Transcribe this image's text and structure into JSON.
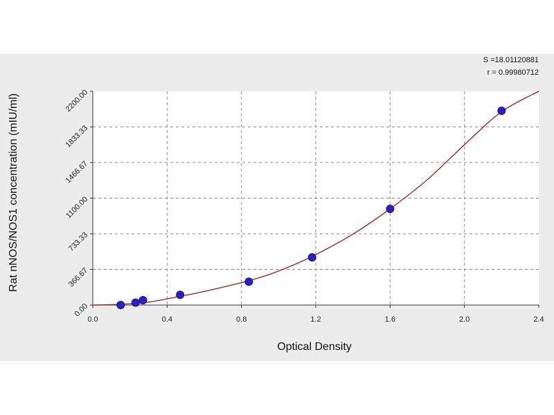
{
  "chart_data": {
    "type": "scatter",
    "xlabel": "Optical Density",
    "ylabel": "Rat nNOS/NOS1 concentration (mIU/ml)",
    "xlim": [
      0,
      2.4
    ],
    "ylim": [
      0,
      2200
    ],
    "x_ticks": [
      {
        "value": 0.0,
        "label": "0.0"
      },
      {
        "value": 0.4,
        "label": "0.4"
      },
      {
        "value": 0.8,
        "label": "0.8"
      },
      {
        "value": 1.2,
        "label": "1.2"
      },
      {
        "value": 1.6,
        "label": "1.6"
      },
      {
        "value": 2.0,
        "label": "2.0"
      },
      {
        "value": 2.4,
        "label": "2.4"
      }
    ],
    "y_ticks": [
      {
        "value": 0,
        "label": "0.00"
      },
      {
        "value": 366.67,
        "label": "366.67"
      },
      {
        "value": 733.33,
        "label": "733.33"
      },
      {
        "value": 1100,
        "label": "1100.00"
      },
      {
        "value": 1466.67,
        "label": "1466.67"
      },
      {
        "value": 1833.33,
        "label": "1833.33"
      },
      {
        "value": 2200,
        "label": "2200.00"
      }
    ],
    "grid": true,
    "points": [
      {
        "x": 0.15,
        "y": 0
      },
      {
        "x": 0.23,
        "y": 25
      },
      {
        "x": 0.27,
        "y": 50
      },
      {
        "x": 0.47,
        "y": 105
      },
      {
        "x": 0.84,
        "y": 240
      },
      {
        "x": 1.18,
        "y": 490
      },
      {
        "x": 1.6,
        "y": 990
      },
      {
        "x": 2.2,
        "y": 2000
      }
    ],
    "fit_curve": [
      {
        "x": 0.0,
        "y": 0
      },
      {
        "x": 0.15,
        "y": 8
      },
      {
        "x": 0.3,
        "y": 30
      },
      {
        "x": 0.47,
        "y": 90
      },
      {
        "x": 0.6,
        "y": 140
      },
      {
        "x": 0.84,
        "y": 250
      },
      {
        "x": 1.0,
        "y": 350
      },
      {
        "x": 1.18,
        "y": 500
      },
      {
        "x": 1.4,
        "y": 730
      },
      {
        "x": 1.6,
        "y": 990
      },
      {
        "x": 1.8,
        "y": 1290
      },
      {
        "x": 2.0,
        "y": 1650
      },
      {
        "x": 2.2,
        "y": 1990
      },
      {
        "x": 2.4,
        "y": 2210
      }
    ],
    "stats": {
      "s_line": "S =18.01120881",
      "r_line": "r = 0.99980712"
    },
    "colors": {
      "point": "#2b20c8",
      "point_edge": "#1a1470",
      "curve": "#a01818",
      "plot_bg": "#ffffff",
      "frame_bg": "#ececec",
      "grid": "#8a8a8a"
    }
  }
}
